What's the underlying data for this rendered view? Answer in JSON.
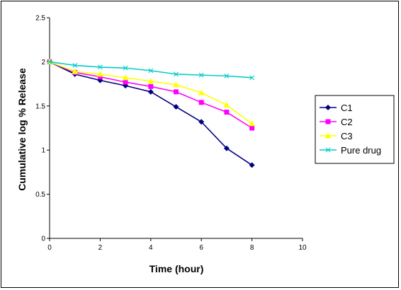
{
  "chart_data": {
    "type": "line",
    "title": "",
    "xlabel": "Time (hour)",
    "ylabel": "Cumulative log % Release",
    "xlim": [
      0,
      10
    ],
    "ylim": [
      0,
      2.5
    ],
    "xticks": [
      "0",
      "2",
      "4",
      "6",
      "8",
      "10"
    ],
    "yticks": [
      "0",
      "0.5",
      "1",
      "1.5",
      "2",
      "2.5"
    ],
    "grid": false,
    "legend_position": "right",
    "x": [
      0,
      1,
      2,
      3,
      4,
      5,
      6,
      7,
      8
    ],
    "series": [
      {
        "name": "C1",
        "color": "#000080",
        "marker": "diamond",
        "values": [
          2.0,
          1.86,
          1.79,
          1.73,
          1.66,
          1.49,
          1.32,
          1.02,
          0.83
        ]
      },
      {
        "name": "C2",
        "color": "#FF00FF",
        "marker": "square",
        "values": [
          2.0,
          1.88,
          1.83,
          1.77,
          1.72,
          1.66,
          1.54,
          1.43,
          1.25
        ]
      },
      {
        "name": "C3",
        "color": "#FFFF00",
        "marker": "triangle",
        "values": [
          2.0,
          1.89,
          1.86,
          1.82,
          1.78,
          1.74,
          1.65,
          1.51,
          1.3
        ]
      },
      {
        "name": "Pure drug",
        "color": "#00CCCC",
        "marker": "x",
        "values": [
          2.0,
          1.96,
          1.94,
          1.93,
          1.9,
          1.86,
          1.85,
          1.84,
          1.82
        ]
      }
    ]
  }
}
